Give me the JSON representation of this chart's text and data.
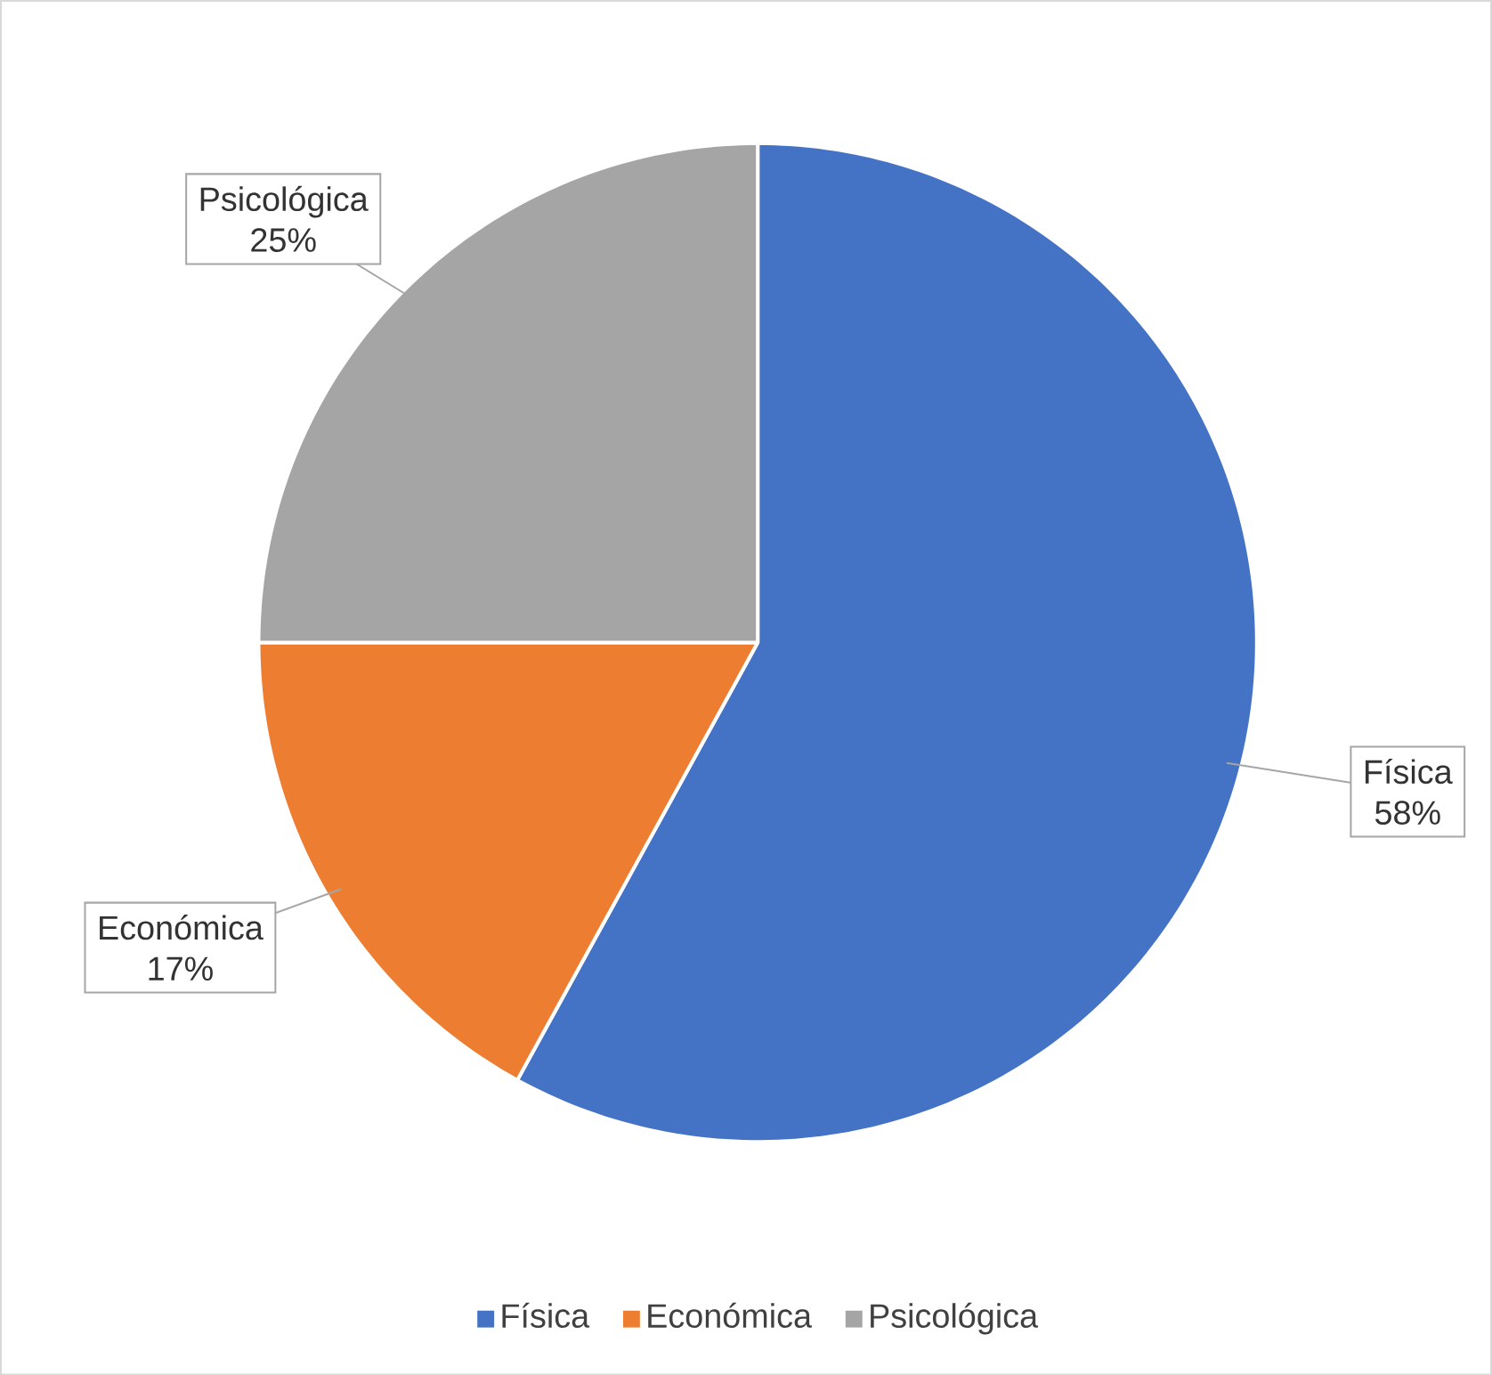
{
  "chart_data": {
    "type": "pie",
    "categories": [
      "Física",
      "Económica",
      "Psicológica"
    ],
    "values": [
      58,
      17,
      25
    ],
    "colors": [
      "#4472c4",
      "#ed7d31",
      "#a5a5a5"
    ],
    "value_labels": [
      "58%",
      "17%",
      "25%"
    ],
    "legend": "bottom"
  }
}
